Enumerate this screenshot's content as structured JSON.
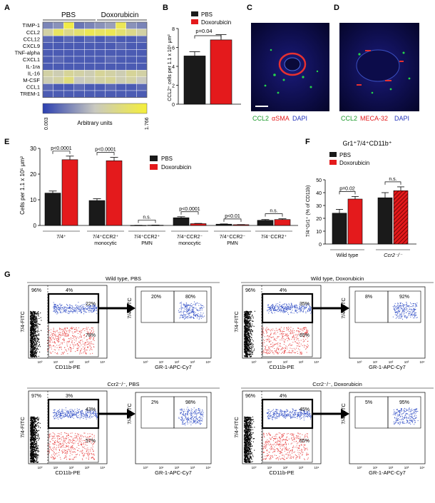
{
  "panels": {
    "A": {
      "letter": "A",
      "group_labels": [
        "PBS",
        "Doxorubicin"
      ],
      "row_labels": [
        "TIMP-1",
        "CCL2",
        "CCL12",
        "CXCL9",
        "TNF-alpha",
        "CXCL1",
        "IL-1ra",
        "IL-16",
        "M-CSF",
        "CCL1",
        "TREM-1"
      ],
      "colorbar": {
        "min": "0.003",
        "max": "1.766",
        "label": "Arbitrary units",
        "low_color": "#2b3fb0",
        "high_color": "#f5ef3a"
      },
      "heatmap_values": [
        [
          0.25,
          0.3,
          0.95,
          0.2,
          0.25,
          0.3,
          0.35,
          0.9,
          0.3,
          0.25
        ],
        [
          0.6,
          0.85,
          0.7,
          0.8,
          0.9,
          0.85,
          0.9,
          0.8,
          0.7,
          0.6
        ],
        [
          0.15,
          0.1,
          0.15,
          0.1,
          0.15,
          0.1,
          0.15,
          0.1,
          0.1,
          0.15
        ],
        [
          0.1,
          0.1,
          0.1,
          0.1,
          0.1,
          0.1,
          0.1,
          0.15,
          0.1,
          0.1
        ],
        [
          0.1,
          0.1,
          0.1,
          0.1,
          0.1,
          0.1,
          0.1,
          0.1,
          0.1,
          0.1
        ],
        [
          0.1,
          0.15,
          0.1,
          0.1,
          0.1,
          0.1,
          0.15,
          0.1,
          0.1,
          0.1
        ],
        [
          0.1,
          0.1,
          0.1,
          0.1,
          0.1,
          0.1,
          0.1,
          0.1,
          0.1,
          0.1
        ],
        [
          0.6,
          0.55,
          0.65,
          0.6,
          0.55,
          0.65,
          0.6,
          0.55,
          0.65,
          0.6
        ],
        [
          0.55,
          0.6,
          0.75,
          0.5,
          0.55,
          0.6,
          0.65,
          0.55,
          0.6,
          0.5
        ],
        [
          0.15,
          0.1,
          0.1,
          0.15,
          0.1,
          0.1,
          0.15,
          0.1,
          0.1,
          0.15
        ],
        [
          0.1,
          0.1,
          0.1,
          0.1,
          0.1,
          0.1,
          0.1,
          0.1,
          0.1,
          0.1
        ]
      ]
    },
    "B": {
      "letter": "B",
      "legend": [
        "PBS",
        "Doxorubicin"
      ],
      "ylabel": "CCL2⁺ cells per 1.1 x 10⁵ μm²",
      "pval": "p=0.04"
    },
    "C": {
      "letter": "C",
      "labels": [
        "CCL2",
        "αSMA",
        "DAPI"
      ]
    },
    "D": {
      "letter": "D",
      "labels": [
        "CCL2",
        "MECA-32",
        "DAPI"
      ]
    },
    "E": {
      "letter": "E",
      "legend": [
        "PBS",
        "Doxorubicin"
      ],
      "ylabel": "Cells per 1.1 x 10⁵ μm²",
      "pvals": [
        "p<0.0001",
        "p<0.0001",
        "n.s.",
        "p<0.0001",
        "p<0.01",
        "n.s."
      ],
      "categories": [
        [
          "7/4⁺"
        ],
        [
          "7/4⁺CCR2⁺",
          "monocytic"
        ],
        [
          "7/4⁺CCR2⁺",
          "PMN"
        ],
        [
          "7/4⁺CCR2⁻",
          "monocytic"
        ],
        [
          "7/4⁺CCR2⁻",
          "PMN"
        ],
        [
          "7/4⁻CCR2⁺"
        ]
      ]
    },
    "F": {
      "letter": "F",
      "title": "Gr1⁺7/4⁺CD11b⁺",
      "legend": [
        "PBS",
        "Doxorubicin"
      ],
      "ylabel": "7/4⁺Gr1⁺ (% of CD11b)",
      "pvals": [
        "p=0.02",
        "n.s."
      ],
      "groups": [
        "Wild type",
        "Ccr2⁻/⁻"
      ]
    },
    "G": {
      "letter": "G",
      "blocks": [
        {
          "title": "Wild type, PBS",
          "tl": "96%",
          "tr": "4%",
          "gate_hi": "22%",
          "gate_lo": "78%",
          "sub_l": "20%",
          "sub_r": "80%"
        },
        {
          "title": "Wild type, Doxorubicin",
          "tl": "96%",
          "tr": "4%",
          "gate_hi": "35%",
          "gate_lo": "65%",
          "sub_l": "8%",
          "sub_r": "92%"
        },
        {
          "title": "Ccr2⁻/⁻, PBS",
          "tl": "97%",
          "tr": "3%",
          "gate_hi": "43%",
          "gate_lo": "57%",
          "sub_l": "2%",
          "sub_r": "98%"
        },
        {
          "title": "Ccr2⁻/⁻, Doxorubicin",
          "tl": "96%",
          "tr": "4%",
          "gate_hi": "45%",
          "gate_lo": "55%",
          "sub_l": "5%",
          "sub_r": "95%"
        }
      ],
      "x_label_main": "CD11b-PE",
      "x_label_sub": "GR-1-APC-Cy7",
      "y_label": "7/4-FITC",
      "tick_labels": [
        "10⁰",
        "10¹",
        "10²",
        "10³",
        "10⁴"
      ]
    }
  },
  "chart_data": [
    {
      "type": "heatmap",
      "panel": "A",
      "rows": [
        "TIMP-1",
        "CCL2",
        "CCL12",
        "CXCL9",
        "TNF-alpha",
        "CXCL1",
        "IL-1ra",
        "IL-16",
        "M-CSF",
        "CCL1",
        "TREM-1"
      ],
      "column_groups": [
        "PBS",
        "Doxorubicin"
      ],
      "value_range": [
        0.003,
        1.766
      ]
    },
    {
      "type": "bar",
      "panel": "B",
      "categories": [
        "PBS",
        "Doxorubicin"
      ],
      "values": [
        5.1,
        6.8
      ],
      "errors": [
        0.45,
        0.55
      ],
      "ylim": [
        0,
        8
      ],
      "yticks": [
        0,
        2,
        4,
        6,
        8
      ],
      "colors": [
        "#1a1a1a",
        "#e41a1c"
      ]
    },
    {
      "type": "bar",
      "panel": "E",
      "ylim": [
        0,
        30
      ],
      "yticks": [
        0,
        10,
        20,
        30
      ],
      "series": [
        {
          "name": "PBS",
          "color": "#1a1a1a",
          "values": [
            12.6,
            9.7,
            0.05,
            3.0,
            0.5,
            2.0
          ],
          "errors": [
            0.8,
            0.7,
            0.03,
            0.4,
            0.1,
            0.3
          ]
        },
        {
          "name": "Doxorubicin",
          "color": "#e41a1c",
          "values": [
            25.6,
            25.2,
            0.1,
            0.7,
            0.3,
            2.3
          ],
          "errors": [
            1.4,
            1.3,
            0.05,
            0.1,
            0.05,
            0.3
          ]
        }
      ]
    },
    {
      "type": "bar",
      "panel": "F",
      "categories": [
        "Wild type",
        "Ccr2⁻/⁻"
      ],
      "ylim": [
        0,
        50
      ],
      "yticks": [
        0,
        10,
        20,
        30,
        40,
        50
      ],
      "series": [
        {
          "name": "PBS",
          "color": "#1a1a1a",
          "values": [
            24,
            36
          ],
          "errors": [
            3,
            4
          ]
        },
        {
          "name": "Doxorubicin",
          "color": "#e41a1c",
          "values": [
            35,
            41.5
          ],
          "errors": [
            2,
            3
          ],
          "hatched_for_ccr2": true
        }
      ]
    }
  ]
}
